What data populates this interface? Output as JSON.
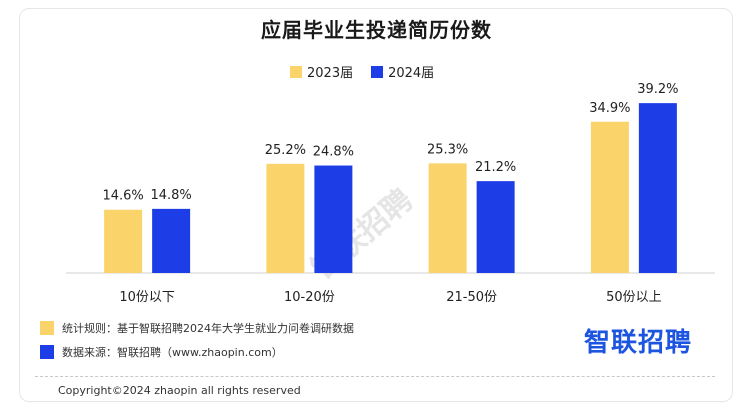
{
  "title": "应届毕业生投递简历份数",
  "colors": {
    "s2023": "#fbd36b",
    "s2024": "#1d3ee6"
  },
  "chart_data": {
    "type": "bar",
    "categories": [
      "10份以下",
      "10-20份",
      "21-50份",
      "50份以上"
    ],
    "series": [
      {
        "name": "2023届",
        "values": [
          14.6,
          25.2,
          25.3,
          34.9
        ],
        "labels": [
          "14.6%",
          "25.2%",
          "25.3%",
          "34.9%"
        ]
      },
      {
        "name": "2024届",
        "values": [
          14.8,
          24.8,
          21.2,
          39.2
        ],
        "labels": [
          "14.8%",
          "24.8%",
          "21.2%",
          "39.2%"
        ]
      }
    ],
    "ylim": [
      0,
      45
    ],
    "grid": false,
    "legend": "top-center"
  },
  "notes": {
    "rule": "统计规则：基于智联招聘2024年大学生就业力问卷调研数据",
    "source": "数据来源：智联招聘（www.zhaopin.com）"
  },
  "brand": "智联招聘",
  "watermark": "智联招聘",
  "copyright": "Copyright©2024 zhaopin all rights reserved"
}
